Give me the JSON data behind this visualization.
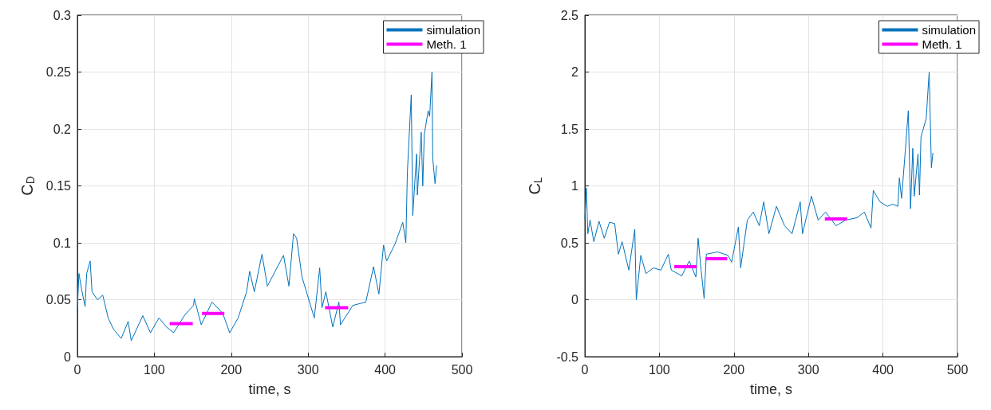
{
  "chart_data": [
    {
      "type": "line",
      "xlabel": "time, s",
      "ylabel": "C$_{D}$",
      "xlim": [
        0,
        500
      ],
      "xticks": [
        0,
        100,
        200,
        300,
        400,
        500
      ],
      "ylim": [
        0,
        0.3
      ],
      "yticks": [
        0,
        0.05,
        0.1,
        0.15,
        0.2,
        0.25,
        0.3
      ],
      "grid": true,
      "legend": "top right",
      "marker": "none",
      "line_style": "solid",
      "series": [
        {
          "name": "simulation",
          "color": "#0072bd",
          "x": [
            0,
            2,
            5.5,
            10,
            12,
            16.6,
            19,
            26,
            33,
            40,
            47,
            57,
            66,
            70,
            85,
            95,
            106,
            116,
            125,
            140,
            151,
            152,
            161,
            175,
            189,
            198,
            209,
            220,
            224,
            230,
            240,
            247,
            254,
            268,
            275,
            281,
            285,
            292,
            308,
            315,
            318,
            323,
            332,
            340,
            342,
            358,
            375,
            385,
            392,
            398,
            402,
            413,
            423,
            427,
            429,
            434,
            436,
            441,
            442,
            447,
            449,
            451,
            456,
            458,
            461,
            462,
            465,
            467
          ],
          "values": [
            0.042,
            0.073,
            0.059,
            0.044,
            0.073,
            0.084,
            0.057,
            0.05,
            0.054,
            0.034,
            0.024,
            0.016,
            0.031,
            0.014,
            0.036,
            0.021,
            0.034,
            0.026,
            0.021,
            0.037,
            0.045,
            0.051,
            0.028,
            0.048,
            0.038,
            0.021,
            0.034,
            0.057,
            0.075,
            0.057,
            0.09,
            0.062,
            0.071,
            0.089,
            0.062,
            0.108,
            0.104,
            0.07,
            0.034,
            0.078,
            0.043,
            0.057,
            0.026,
            0.048,
            0.028,
            0.045,
            0.048,
            0.079,
            0.055,
            0.098,
            0.084,
            0.099,
            0.118,
            0.1,
            0.162,
            0.23,
            0.124,
            0.178,
            0.142,
            0.197,
            0.15,
            0.195,
            0.216,
            0.211,
            0.25,
            0.174,
            0.152,
            0.168
          ]
        },
        {
          "name": "Meth. 1",
          "color": "#ff00ff",
          "x": [
            120,
            150,
            151,
            162,
            191,
            192,
            322,
            352
          ],
          "values": [
            0.029,
            0.029,
            null,
            0.038,
            0.038,
            null,
            0.043,
            0.043
          ]
        }
      ]
    },
    {
      "type": "line",
      "xlabel": "time, s",
      "ylabel": "C$_{L}$",
      "xlim": [
        0,
        500
      ],
      "xticks": [
        0,
        100,
        200,
        300,
        400,
        500
      ],
      "ylim": [
        -0.5,
        2.5
      ],
      "yticks": [
        -0.5,
        0,
        0.5,
        1,
        1.5,
        2,
        2.5
      ],
      "grid": true,
      "legend": "top right",
      "marker": "none",
      "line_style": "solid",
      "series": [
        {
          "name": "simulation",
          "color": "#0072bd",
          "x": [
            0,
            2,
            4,
            7,
            12,
            19,
            26,
            33,
            40,
            45,
            50,
            59,
            67,
            69,
            75,
            82,
            92,
            102,
            112,
            116,
            130,
            140,
            149,
            152,
            156,
            160,
            163,
            178,
            192,
            197,
            206,
            209,
            218,
            226,
            234,
            240,
            247,
            257,
            268,
            278,
            289,
            292,
            304,
            313,
            323,
            337,
            350,
            365,
            375,
            384,
            387,
            396,
            406,
            413,
            420,
            422,
            425,
            430,
            434,
            437,
            440,
            442,
            447,
            449,
            451,
            458,
            462,
            465,
            467
          ],
          "values": [
            0.71,
            0.98,
            0.58,
            0.7,
            0.51,
            0.69,
            0.54,
            0.68,
            0.67,
            0.4,
            0.51,
            0.26,
            0.62,
            0,
            0.39,
            0.23,
            0.28,
            0.26,
            0.4,
            0.26,
            0.21,
            0.34,
            0.2,
            0.54,
            0.26,
            0.01,
            0.4,
            0.42,
            0.39,
            0.33,
            0.64,
            0.28,
            0.7,
            0.77,
            0.65,
            0.86,
            0.58,
            0.82,
            0.65,
            0.58,
            0.86,
            0.58,
            0.91,
            0.7,
            0.77,
            0.65,
            0.7,
            0.72,
            0.77,
            0.63,
            0.96,
            0.86,
            0.82,
            0.84,
            0.82,
            1.07,
            0.89,
            1.31,
            1.66,
            0.8,
            1.33,
            0.91,
            1.28,
            0.92,
            1.43,
            1.59,
            2,
            1.16,
            1.29
          ]
        },
        {
          "name": "Meth. 1",
          "color": "#ff00ff",
          "x": [
            120,
            150,
            151,
            162,
            191,
            192,
            322,
            352
          ],
          "values": [
            0.29,
            0.29,
            null,
            0.36,
            0.36,
            null,
            0.71,
            0.71
          ]
        }
      ]
    }
  ]
}
